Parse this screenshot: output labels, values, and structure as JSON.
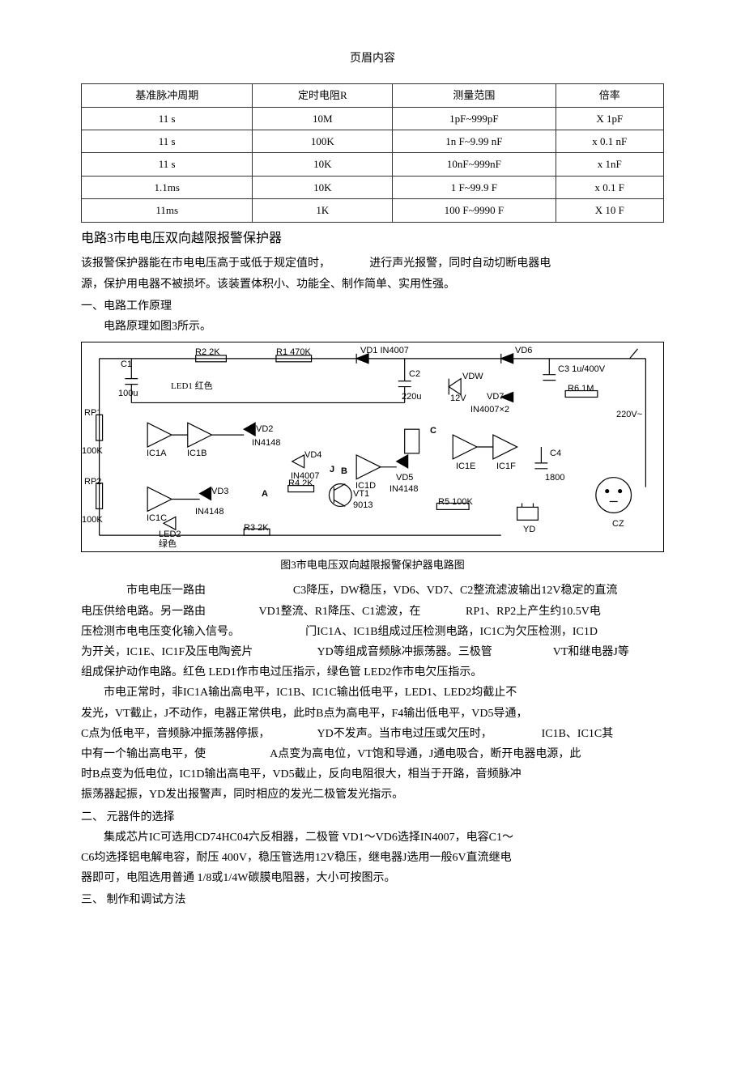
{
  "header": "页眉内容",
  "table": {
    "columns": [
      "基准脉冲周期",
      "定时电阻R",
      "测量范围",
      "倍率"
    ],
    "rows": [
      [
        "11 s",
        "10M",
        "1pF~999pF",
        "X 1pF"
      ],
      [
        "11 s",
        "100K",
        "1n F~9.99 nF",
        "x 0.1 nF"
      ],
      [
        "11 s",
        "10K",
        "10nF~999nF",
        "x 1nF"
      ],
      [
        "1.1ms",
        "10K",
        "1 F~99.9 F",
        "x 0.1 F"
      ],
      [
        "11ms",
        "1K",
        "100 F~9990 F",
        "X 10 F"
      ]
    ]
  },
  "title": "电路3市电电压双向越限报警保护器",
  "intro": {
    "l1a": "该报警保护器能在市电电压高于或低于规定值时，",
    "l1b": "进行声光报警，同时自动切断电器电",
    "l2": "源，保护用电器不被损坏。该装置体积小、功能全、制作简单、实用性强。"
  },
  "sec1": {
    "h": "一、电路工作原理",
    "p1": "电路原理如图3所示。"
  },
  "diagram": {
    "caption": "图3市电电压双向越限报警保护器电路图",
    "labels": {
      "c1": "C1",
      "c1v": "100u",
      "r2": "R2  2K",
      "r1": "R1  470K",
      "vd1": "VD1  IN4007",
      "vd6": "VD6",
      "c2": "C2",
      "c2v": "220u",
      "vdw": "VDW",
      "vdw12": "12V",
      "vd7": "VD7",
      "c3": "C3  1u/400V",
      "r6": "R6  1M",
      "in4007x2": "IN4007×2",
      "v220": "220V~",
      "rp1": "RP1",
      "rp1v": "100K",
      "led1": "LED1 红色",
      "ic1a": "IC1A",
      "ic1b": "IC1B",
      "vd2": "VD2",
      "in4148a": "IN4148",
      "vd4": "VD4",
      "in4007b": "IN4007",
      "J": "J",
      "ic1d": "IC1D",
      "vd5": "VD5",
      "in4148b": "IN4148",
      "ic1e": "IC1E",
      "ic1f": "IC1F",
      "c4": "C4",
      "c4v": "1800",
      "rp2": "RP2",
      "rp2v": "100K",
      "ic1c": "IC1C",
      "vd3": "VD3",
      "led2": "LED2",
      "led2c": "绿色",
      "in4148c": "IN4148",
      "r4": "R4  2K",
      "vt1": "VT1",
      "vt1v": "9013",
      "r3": "R3  2K",
      "r5": "R5  100K",
      "yd": "YD",
      "cz": "CZ",
      "A": "A",
      "B": "B",
      "C": "C"
    }
  },
  "body": {
    "p1": {
      "a": "市电电压一路由",
      "b": "C3降压，DW稳压，VD6、VD7、C2整流滤波输出12V稳定的直流"
    },
    "p2": {
      "a": "电压供给电路。另一路由",
      "b": "VD1整流、R1降压、C1滤波，在",
      "c": "RP1、RP2上产生约10.5V电"
    },
    "p3": {
      "a": "压检测市电电压变化输入信号。",
      "b": "门IC1A、IC1B组成过压检测电路，IC1C为欠压检测，IC1D"
    },
    "p4": {
      "a": "为开关，IC1E、IC1F及压电陶瓷片",
      "b": "YD等组成音频脉冲振荡器。三极管",
      "c": "VT和继电器J等"
    },
    "p5": "组成保护动作电路。红色 LED1作市电过压指示，绿色管 LED2作市电欠压指示。",
    "p6": "市电正常时，非IC1A输出高电平，IC1B、IC1C输出低电平，LED1、LED2均截止不",
    "p7": "发光，VT截止，J不动作，电器正常供电，此时B点为高电平，F4输出低电平，VD5导通，",
    "p8": {
      "a": "C点为低电平，音频脉冲振荡器停振，",
      "b": "YD不发声。当市电过压或欠压时，",
      "c": "IC1B、IC1C其"
    },
    "p9": {
      "a": "中有一个输出高电平，使",
      "b": "A点变为高电位，VT饱和导通，J通电吸合，断开电器电源，此"
    },
    "p10": "时B点变为低电位，IC1D输出高电平，VD5截止，反向电阻很大，相当于开路，音频脉冲",
    "p11": "振荡器起振，YD发出报警声，同时相应的发光二极管发光指示。"
  },
  "sec2": {
    "h": "二、 元器件的选择",
    "p1": "集成芯片IC可选用CD74HC04六反相器，二极管 VD1～VD6选择IN4007，电容C1～",
    "p2": "C6均选择铝电解电容，耐压 400V，稳压管选用12V稳压，继电器J选用一般6V直流继电",
    "p3": "器即可，电阻选用普通 1/8或1/4W碳膜电阻器，大小可按图示。"
  },
  "sec3": {
    "h": "三、 制作和调试方法"
  }
}
